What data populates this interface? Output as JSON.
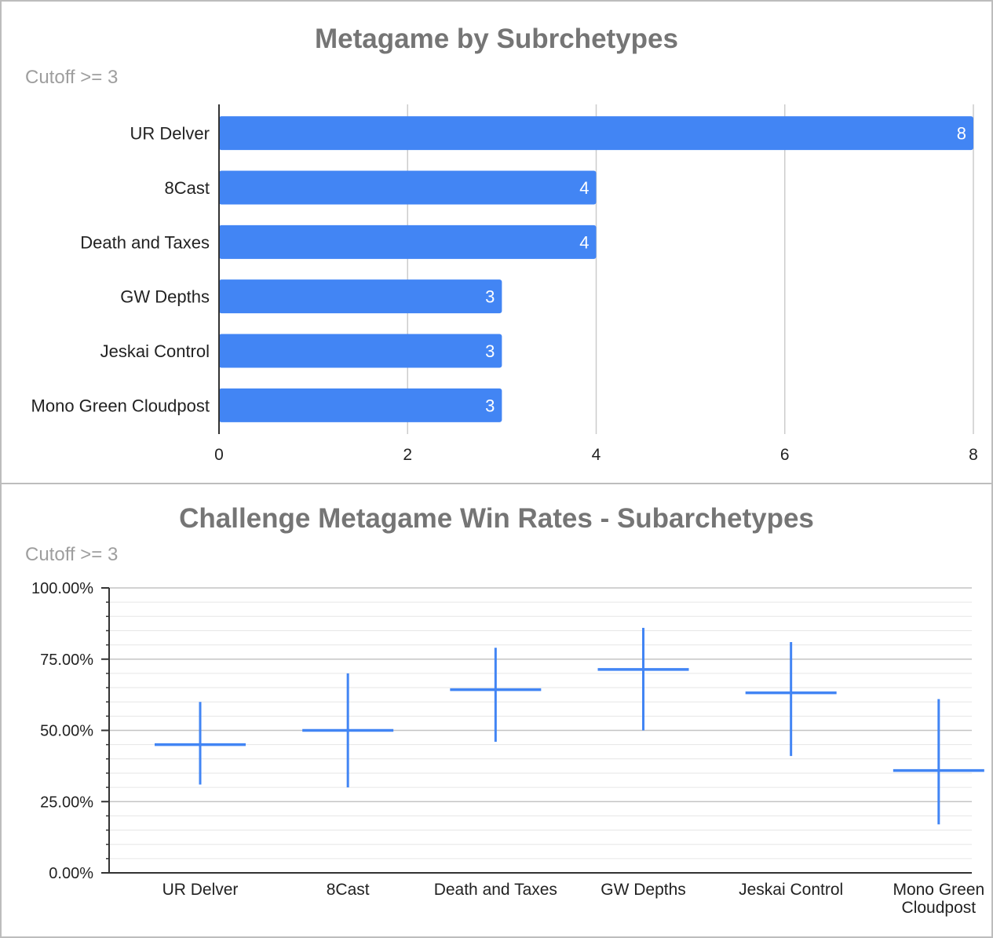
{
  "colors": {
    "bar": "#4285f4",
    "grid": "#cccccc",
    "axis": "#333333",
    "text": "#222222",
    "title": "#757575",
    "subtitle": "#9e9e9e"
  },
  "chart_data": [
    {
      "type": "bar",
      "orientation": "horizontal",
      "title": "Metagame by Subrchetypes",
      "subtitle": "Cutoff >= 3",
      "categories": [
        "UR Delver",
        "8Cast",
        "Death and Taxes",
        "GW Depths",
        "Jeskai Control",
        "Mono Green Cloudpost"
      ],
      "values": [
        8,
        4,
        4,
        3,
        3,
        3
      ],
      "xlim": [
        0,
        8
      ],
      "xticks": [
        "0",
        "2",
        "4",
        "6",
        "8"
      ],
      "data_labels": true,
      "grid": true,
      "legend": "none"
    },
    {
      "type": "candlestick",
      "title": "Challenge Metagame Win Rates - Subarchetypes",
      "subtitle": "Cutoff >= 3",
      "categories": [
        "UR Delver",
        "8Cast",
        "Death and Taxes",
        "GW Depths",
        "Jeskai Control",
        "Mono Green Cloudpost"
      ],
      "category_lines": [
        [
          "UR Delver"
        ],
        [
          "8Cast"
        ],
        [
          "Death and Taxes"
        ],
        [
          "GW Depths"
        ],
        [
          "Jeskai Control"
        ],
        [
          "Mono Green",
          "Cloudpost"
        ]
      ],
      "mid": [
        45,
        50,
        64.3,
        71.4,
        63.2,
        35.9
      ],
      "low": [
        31,
        30,
        46,
        50,
        41,
        17
      ],
      "high": [
        60,
        70,
        79,
        86,
        81,
        61
      ],
      "ylim": [
        0,
        100
      ],
      "yticks": [
        "0.00%",
        "25.00%",
        "50.00%",
        "75.00%",
        "100.00%"
      ],
      "grid": true,
      "legend": "none"
    }
  ]
}
